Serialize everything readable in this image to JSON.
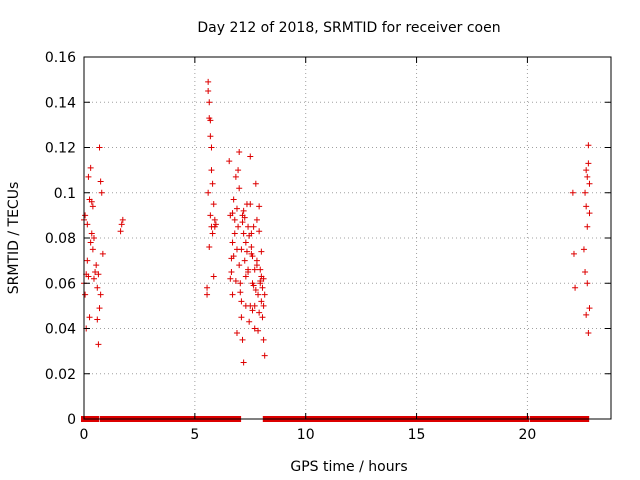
{
  "chart_data": {
    "type": "scatter",
    "title": "Day 212 of 2018, SRMTID for receiver coen",
    "xlabel": "GPS time / hours",
    "ylabel": "SRMTID / TECUs",
    "xlim": [
      0,
      23.77
    ],
    "ylim": [
      0,
      0.16
    ],
    "xticks": [
      0,
      5,
      10,
      15,
      20
    ],
    "xtick_labels": [
      "0",
      "5",
      "10",
      "15",
      "20"
    ],
    "yticks": [
      0,
      0.02,
      0.04,
      0.06,
      0.08,
      0.1,
      0.12,
      0.14,
      0.16
    ],
    "ytick_labels": [
      "0",
      "0.02",
      "0.04",
      "0.06",
      "0.08",
      "0.1",
      "0.12",
      "0.14",
      "0.16"
    ],
    "grid": true,
    "legend": false,
    "marker": "+",
    "series_color": "#dd0000",
    "zero_segments": [
      [
        0.0,
        0.2
      ],
      [
        0.25,
        0.3
      ],
      [
        0.45,
        0.55
      ],
      [
        0.85,
        5.75
      ],
      [
        5.95,
        6.45
      ],
      [
        6.7,
        6.95
      ],
      [
        8.2,
        19.95
      ],
      [
        20.25,
        22.65
      ]
    ],
    "series": [
      {
        "x": [
          0.0,
          0.0,
          0.05,
          0.05,
          0.1,
          0.1,
          0.15,
          0.15,
          0.2,
          0.2,
          0.25,
          0.25,
          0.3,
          0.3,
          0.35,
          0.35,
          0.4,
          0.4,
          0.45,
          0.45,
          0.5,
          0.55,
          0.6,
          0.6,
          0.65,
          0.65,
          0.7,
          0.7,
          0.75,
          0.75,
          0.8,
          0.85,
          1.65,
          1.7,
          1.75,
          5.55,
          5.55,
          5.6,
          5.6,
          5.6,
          5.65,
          5.65,
          5.65,
          5.7,
          5.7,
          5.7,
          5.75,
          5.75,
          5.75,
          5.8,
          5.8,
          5.85,
          5.85,
          5.9,
          5.9,
          5.95,
          6.55,
          6.6,
          6.65,
          6.7,
          6.75,
          6.8,
          6.85,
          6.9,
          6.95,
          7.0,
          7.05,
          7.1,
          7.15,
          7.2,
          7.25,
          7.3,
          7.35,
          7.4,
          7.45,
          7.5,
          7.55,
          7.6,
          7.65,
          7.7,
          7.75,
          7.8,
          7.85,
          7.9,
          7.95,
          8.0,
          8.05,
          8.1,
          8.15,
          6.6,
          6.7,
          6.8,
          6.9,
          7.0,
          7.1,
          7.2,
          7.3,
          7.4,
          7.5,
          7.6,
          7.7,
          7.8,
          7.9,
          8.0,
          8.1,
          6.65,
          6.75,
          6.85,
          6.95,
          7.05,
          7.15,
          7.25,
          7.35,
          7.45,
          7.55,
          7.65,
          7.75,
          7.85,
          7.95,
          8.05,
          8.15,
          6.7,
          6.9,
          7.1,
          7.3,
          7.5,
          7.7,
          7.9,
          8.1,
          7.0,
          7.2,
          7.4,
          7.6,
          7.8,
          8.0,
          7.15,
          7.55,
          7.95,
          22.05,
          22.1,
          22.15,
          22.55,
          22.6,
          22.6,
          22.65,
          22.65,
          22.65,
          22.7,
          22.7,
          22.7,
          22.75,
          22.75,
          22.75,
          22.8,
          22.8,
          22.8
        ],
        "y": [
          0.088,
          0.06,
          0.09,
          0.055,
          0.04,
          0.064,
          0.086,
          0.07,
          0.107,
          0.063,
          0.097,
          0.045,
          0.111,
          0.078,
          0.096,
          0.082,
          0.094,
          0.075,
          0.08,
          0.062,
          0.065,
          0.068,
          0.044,
          0.058,
          0.033,
          0.064,
          0.12,
          0.049,
          0.105,
          0.055,
          0.1,
          0.073,
          0.083,
          0.086,
          0.088,
          0.055,
          0.058,
          0.149,
          0.145,
          0.1,
          0.14,
          0.133,
          0.076,
          0.132,
          0.125,
          0.09,
          0.12,
          0.11,
          0.085,
          0.104,
          0.082,
          0.095,
          0.063,
          0.085,
          0.088,
          0.086,
          0.114,
          0.09,
          0.065,
          0.055,
          0.097,
          0.082,
          0.107,
          0.075,
          0.11,
          0.118,
          0.06,
          0.045,
          0.09,
          0.082,
          0.07,
          0.05,
          0.095,
          0.065,
          0.081,
          0.116,
          0.073,
          0.06,
          0.085,
          0.04,
          0.104,
          0.07,
          0.055,
          0.094,
          0.06,
          0.074,
          0.045,
          0.035,
          0.055,
          0.062,
          0.078,
          0.088,
          0.093,
          0.068,
          0.075,
          0.092,
          0.063,
          0.085,
          0.05,
          0.072,
          0.066,
          0.088,
          0.047,
          0.063,
          0.05,
          0.071,
          0.072,
          0.061,
          0.085,
          0.056,
          0.035,
          0.089,
          0.074,
          0.043,
          0.082,
          0.059,
          0.057,
          0.039,
          0.066,
          0.058,
          0.028,
          0.091,
          0.038,
          0.052,
          0.078,
          0.095,
          0.05,
          0.083,
          0.062,
          0.102,
          0.025,
          0.066,
          0.048,
          0.068,
          0.052,
          0.087,
          0.076,
          0.061,
          0.1,
          0.073,
          0.058,
          0.075,
          0.1,
          0.065,
          0.11,
          0.094,
          0.046,
          0.107,
          0.085,
          0.06,
          0.121,
          0.113,
          0.038,
          0.104,
          0.091,
          0.049
        ]
      }
    ]
  }
}
